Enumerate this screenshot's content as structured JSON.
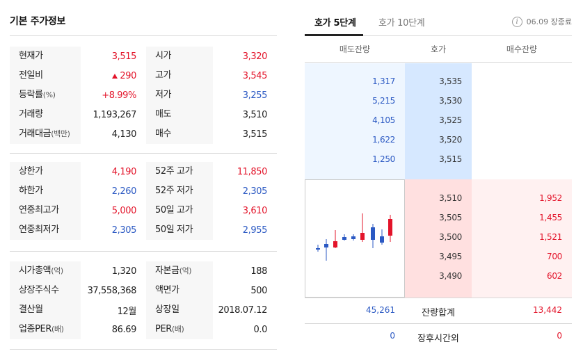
{
  "left": {
    "title": "기본 주가정보",
    "block_a": [
      {
        "l1": "현재가",
        "s1": "",
        "v1": "3,515",
        "v1c": "up",
        "l2": "시가",
        "s2": "",
        "v2": "3,320",
        "v2c": "up"
      },
      {
        "l1": "전일비",
        "s1": "",
        "v1": "290",
        "v1c": "up",
        "tri": true,
        "l2": "고가",
        "s2": "",
        "v2": "3,545",
        "v2c": "up"
      },
      {
        "l1": "등락률",
        "s1": "(%)",
        "v1": "+8.99%",
        "v1c": "up",
        "l2": "저가",
        "s2": "",
        "v2": "3,255",
        "v2c": "down"
      },
      {
        "l1": "거래량",
        "s1": "",
        "v1": "1,193,267",
        "v1c": "",
        "l2": "매도",
        "s2": "",
        "v2": "3,510",
        "v2c": ""
      },
      {
        "l1": "거래대금",
        "s1": "(백만)",
        "v1": "4,130",
        "v1c": "",
        "l2": "매수",
        "s2": "",
        "v2": "3,515",
        "v2c": ""
      }
    ],
    "block_b": [
      {
        "l1": "상한가",
        "s1": "",
        "v1": "4,190",
        "v1c": "up",
        "l2": "52주 고가",
        "s2": "",
        "v2": "11,850",
        "v2c": "up"
      },
      {
        "l1": "하한가",
        "s1": "",
        "v1": "2,260",
        "v1c": "down",
        "l2": "52주 저가",
        "s2": "",
        "v2": "2,305",
        "v2c": "down"
      },
      {
        "l1": "연중최고가",
        "s1": "",
        "v1": "5,000",
        "v1c": "up",
        "l2": "50일 고가",
        "s2": "",
        "v2": "3,610",
        "v2c": "up"
      },
      {
        "l1": "연중최저가",
        "s1": "",
        "v1": "2,305",
        "v1c": "down",
        "l2": "50일 저가",
        "s2": "",
        "v2": "2,955",
        "v2c": "down"
      }
    ],
    "block_c": [
      {
        "l1": "시가총액",
        "s1": "(억)",
        "v1": "1,320",
        "v1c": "",
        "l2": "자본금",
        "s2": "(억)",
        "v2": "188",
        "v2c": ""
      },
      {
        "l1": "상장주식수",
        "s1": "",
        "v1": "37,558,368",
        "v1c": "",
        "l2": "액면가",
        "s2": "",
        "v2": "500",
        "v2c": ""
      },
      {
        "l1": "결산월",
        "s1": "",
        "v1": "12월",
        "v1c": "",
        "l2": "상장일",
        "s2": "",
        "v2": "2018.07.12",
        "v2c": ""
      },
      {
        "l1": "업종PER",
        "s1": "(배)",
        "v1": "86.69",
        "v1c": "",
        "l2": "PER",
        "s2": "(배)",
        "v2": "0.0",
        "v2c": ""
      }
    ]
  },
  "right": {
    "tab_5": "호가 5단계",
    "tab_10": "호가 10단계",
    "info_icon": "i",
    "date_status": "06.09 장종료",
    "header": {
      "ask": "매도잔량",
      "price": "호가",
      "bid": "매수잔량"
    },
    "asks": [
      {
        "qty": "1,317",
        "price": "3,535"
      },
      {
        "qty": "5,215",
        "price": "3,530"
      },
      {
        "qty": "4,105",
        "price": "3,525"
      },
      {
        "qty": "1,622",
        "price": "3,520"
      },
      {
        "qty": "1,250",
        "price": "3,515"
      }
    ],
    "bids": [
      {
        "price": "3,510",
        "qty": "1,952"
      },
      {
        "price": "3,505",
        "qty": "1,455"
      },
      {
        "price": "3,500",
        "qty": "1,521"
      },
      {
        "price": "3,495",
        "qty": "700"
      },
      {
        "price": "3,490",
        "qty": "602"
      }
    ],
    "total": {
      "ask": "45,261",
      "label": "잔량합계",
      "bid": "13,442"
    },
    "after_hours": {
      "ask": "0",
      "label": "장후시간외",
      "bid": "0"
    }
  },
  "colors": {
    "up": "#e3142a",
    "down": "#2b59c3",
    "ask_bg": "#eef6ff",
    "ask_price_bg": "#d6e8ff",
    "bid_bg": "#fff1f1",
    "bid_price_bg": "#ffe0e0"
  }
}
